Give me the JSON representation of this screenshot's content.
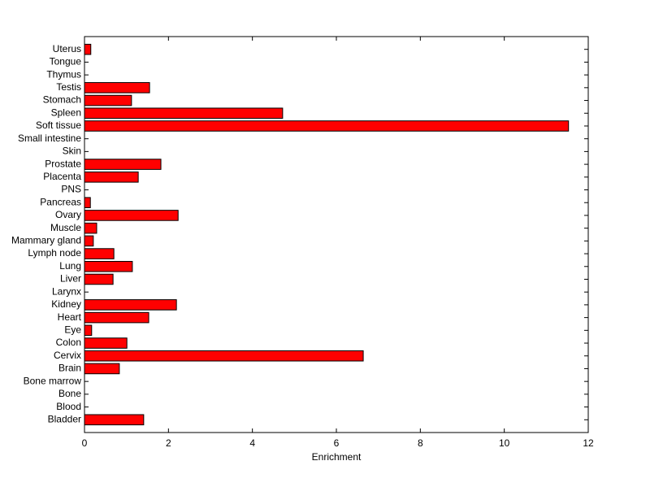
{
  "chart_data": {
    "type": "barh",
    "x_label": "Enrichment",
    "categories": [
      "Bladder",
      "Blood",
      "Bone",
      "Bone marrow",
      "Brain",
      "Cervix",
      "Colon",
      "Eye",
      "Heart",
      "Kidney",
      "Larynx",
      "Liver",
      "Lung",
      "Lymph node",
      "Mammary gland",
      "Muscle",
      "Ovary",
      "Pancreas",
      "PNS",
      "Placenta",
      "Prostate",
      "Skin",
      "Small intestine",
      "Soft tissue",
      "Spleen",
      "Stomach",
      "Testis",
      "Thymus",
      "Tongue",
      "Uterus"
    ],
    "values": [
      1.41,
      0,
      0,
      0,
      0.83,
      6.64,
      1.01,
      0.17,
      1.53,
      2.19,
      0,
      0.68,
      1.14,
      0.7,
      0.21,
      0.29,
      2.23,
      0.14,
      0,
      1.28,
      1.82,
      0,
      0,
      11.53,
      4.72,
      1.12,
      1.55,
      0,
      0,
      0.15
    ],
    "color": "#ff0000",
    "xlim": [
      0,
      12
    ],
    "xticks": [
      0,
      2,
      4,
      6,
      8,
      10,
      12
    ]
  }
}
